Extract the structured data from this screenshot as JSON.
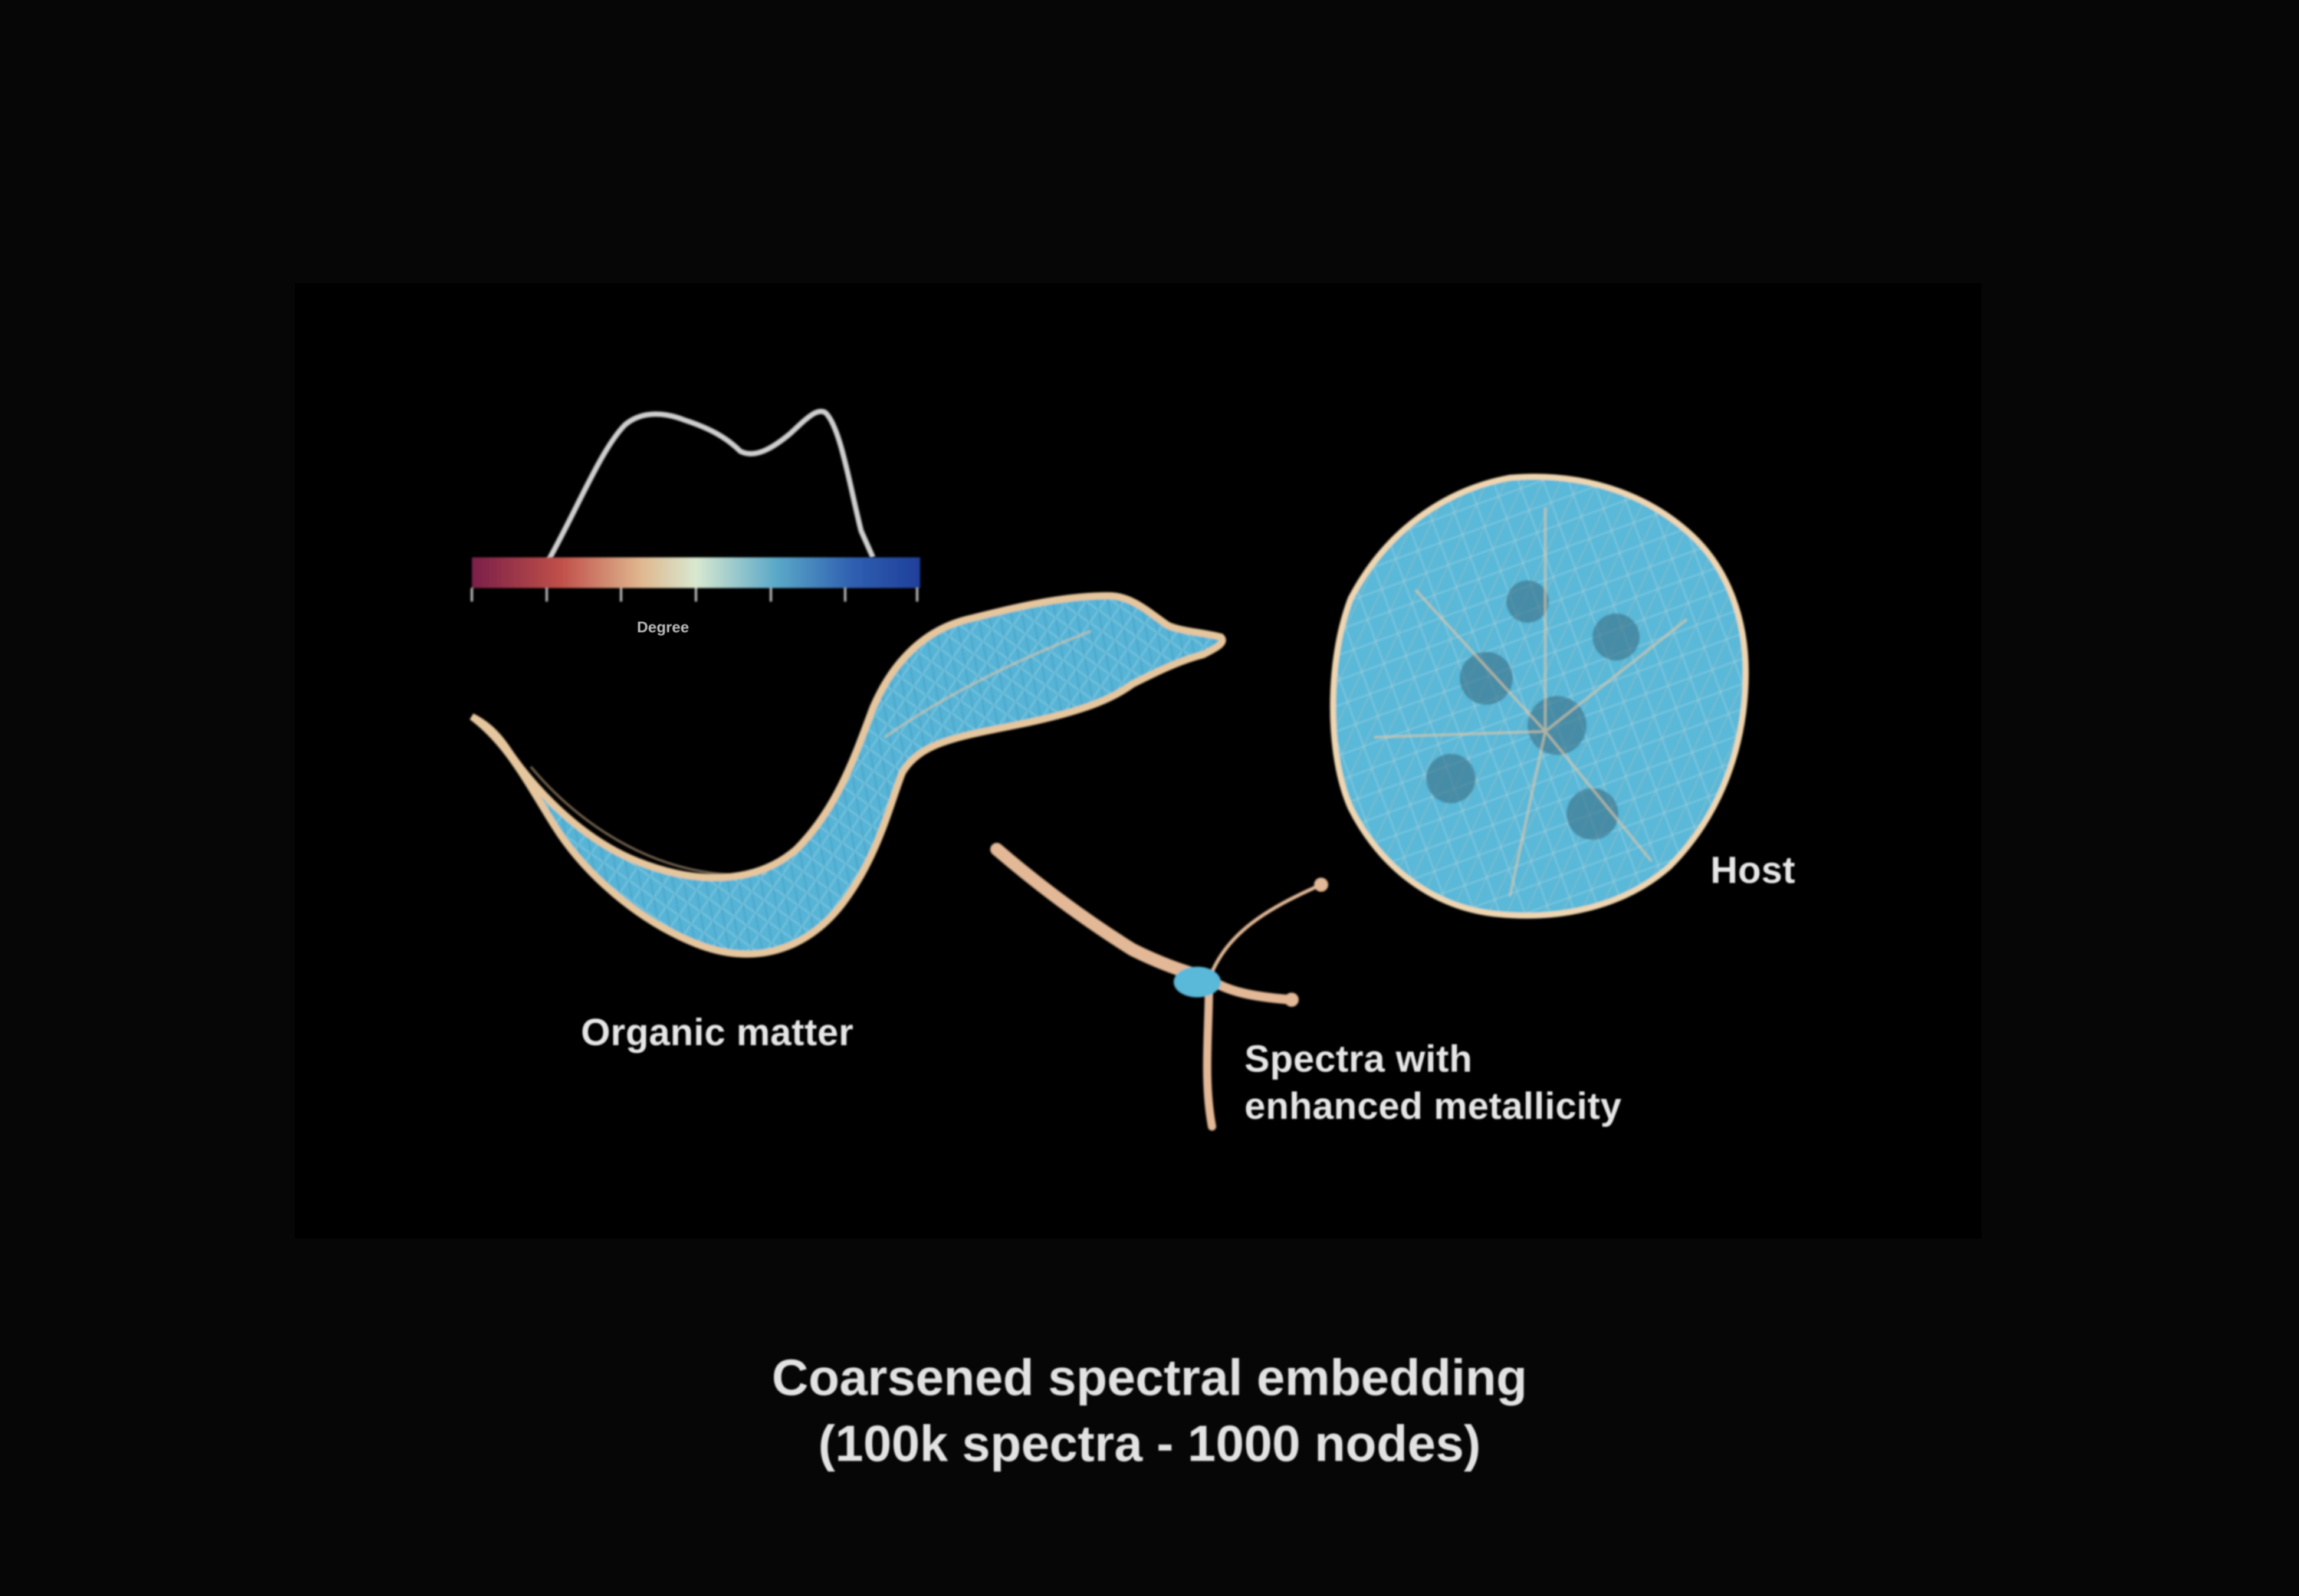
{
  "figure": {
    "labels": {
      "organic": "Organic matter",
      "host": "Host",
      "spectra_line1": "Spectra with",
      "spectra_line2": "enhanced metallicity"
    },
    "colorbar": {
      "axis_label": "Degree",
      "colors": [
        "#7a1f4a",
        "#c0504a",
        "#e0b890",
        "#d8e8d0",
        "#5aa8c8",
        "#2f5fb0",
        "#1f3f9a"
      ]
    },
    "colors": {
      "body_fill": "#5ab8d8",
      "edge": "#e8c9a0",
      "background": "#000000"
    }
  },
  "caption": {
    "line1": "Coarsened spectral embedding",
    "line2": "(100k spectra - 1000 nodes)"
  }
}
